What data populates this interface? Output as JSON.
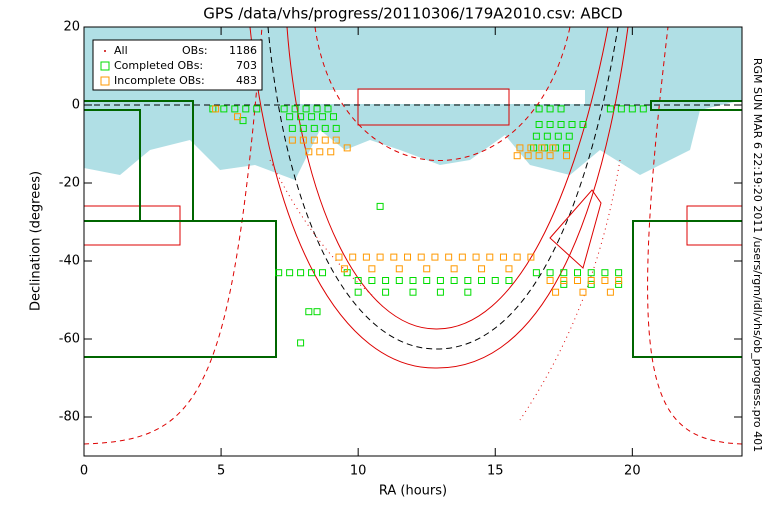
{
  "chart_data": {
    "type": "scatter",
    "title": "GPS  /data/vhs/progress/20110306/179A2010.csv: ABCD",
    "x_label": "RA (hours)",
    "y_label": "Declination (degrees)",
    "side_note": "RGM SUN MAR  6 22:19:20 2011 /users/rgm/idl/vhs/ob_progress.pro 401",
    "xlim": [
      0,
      24
    ],
    "ylim": [
      -90,
      20
    ],
    "xticks": [
      0,
      5,
      10,
      15,
      20
    ],
    "yticks": [
      -80,
      -60,
      -40,
      -20,
      0,
      20
    ],
    "legend": [
      {
        "name": "All",
        "label": "OBs:",
        "count": 1186,
        "color": "#cc0000"
      },
      {
        "name": "Completed OBs:",
        "count": 703,
        "color": "#00dd00"
      },
      {
        "name": "Incomplete OBs:",
        "count": 483,
        "color": "#ff9900"
      }
    ],
    "series": [
      {
        "name": "Completed",
        "color": "#00dd00",
        "x": [
          4.7,
          5.1,
          5.5,
          5.9,
          6.3,
          7.3,
          7.7,
          8.1,
          8.5,
          8.9,
          16.6,
          17.0,
          17.4,
          19.2,
          19.6,
          20.0,
          20.4,
          7.5,
          7.9,
          8.3,
          8.7,
          9.1,
          7.6,
          8.0,
          8.4,
          8.8,
          9.2,
          16.6,
          17.0,
          17.4,
          17.8,
          18.2,
          16.5,
          16.9,
          17.3,
          17.7,
          16.4,
          16.8,
          17.2,
          17.6,
          7.1,
          7.5,
          7.9,
          8.3,
          8.7,
          9.6,
          10.0,
          10.5,
          11.0,
          11.5,
          12.0,
          12.5,
          13.0,
          13.5,
          14.0,
          14.5,
          15.0,
          15.5,
          16.5,
          17.0,
          17.5,
          18.0,
          18.5,
          19.0,
          19.5,
          10.0,
          11.0,
          12.0,
          13.0,
          14.0,
          17.5,
          18.5,
          19.5,
          10.8,
          8.5,
          8.2,
          7.9,
          5.8
        ],
        "y": [
          -1,
          -1,
          -1,
          -1,
          -1,
          -1,
          -1,
          -1,
          -1,
          -1,
          -1,
          -1,
          -1,
          -1,
          -1,
          -1,
          -1,
          -3,
          -3,
          -3,
          -3,
          -3,
          -6,
          -6,
          -6,
          -6,
          -6,
          -5,
          -5,
          -5,
          -5,
          -5,
          -8,
          -8,
          -8,
          -8,
          -11,
          -11,
          -11,
          -11,
          -43,
          -43,
          -43,
          -43,
          -43,
          -43,
          -45,
          -45,
          -45,
          -45,
          -45,
          -45,
          -45,
          -45,
          -45,
          -45,
          -45,
          -45,
          -43,
          -43,
          -43,
          -43,
          -43,
          -43,
          -43,
          -48,
          -48,
          -48,
          -48,
          -48,
          -46,
          -46,
          -46,
          -26,
          -53,
          -53,
          -61,
          -4
        ]
      },
      {
        "name": "Incomplete",
        "color": "#ff9900",
        "x": [
          4.8,
          5.6,
          7.6,
          8.0,
          8.4,
          8.8,
          9.2,
          9.6,
          8.2,
          8.6,
          9.0,
          15.9,
          16.3,
          16.7,
          17.1,
          15.8,
          16.2,
          16.6,
          17.0,
          17.6,
          9.3,
          9.8,
          10.3,
          10.8,
          11.3,
          11.8,
          12.3,
          12.8,
          13.3,
          13.8,
          14.3,
          14.8,
          15.3,
          15.8,
          16.3,
          9.5,
          10.5,
          11.5,
          12.5,
          13.5,
          14.5,
          15.5,
          17.0,
          17.5,
          18.0,
          18.5,
          19.0,
          19.5,
          17.2,
          18.2,
          19.2
        ],
        "y": [
          -1,
          -3,
          -9,
          -9,
          -9,
          -9,
          -9,
          -11,
          -12,
          -12,
          -12,
          -11,
          -11,
          -11,
          -11,
          -13,
          -13,
          -13,
          -13,
          -13,
          -39,
          -39,
          -39,
          -39,
          -39,
          -39,
          -39,
          -39,
          -39,
          -39,
          -39,
          -39,
          -39,
          -39,
          -39,
          -42,
          -42,
          -42,
          -42,
          -42,
          -42,
          -42,
          -45,
          -45,
          -45,
          -45,
          -45,
          -45,
          -48,
          -48,
          -48
        ]
      }
    ]
  }
}
